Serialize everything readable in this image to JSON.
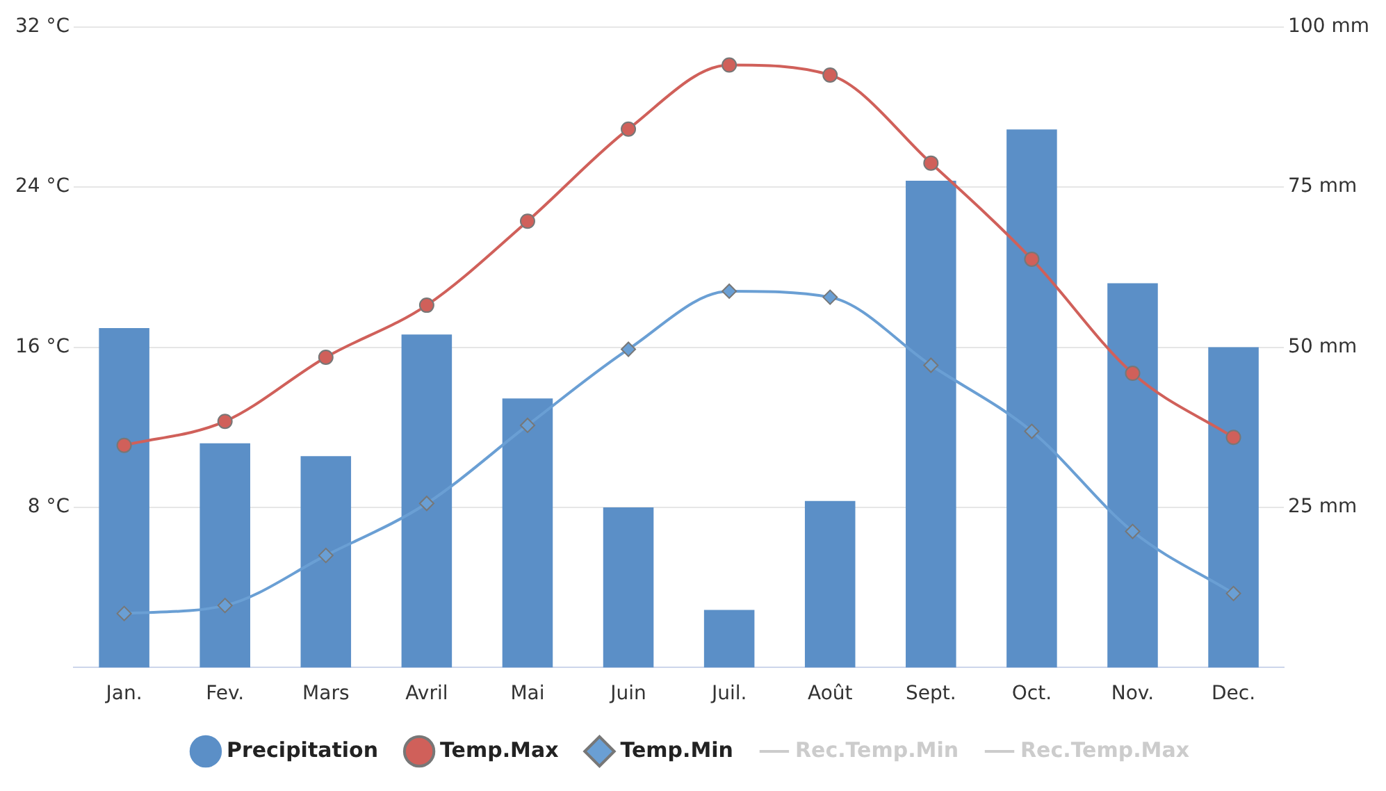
{
  "chart_data": {
    "type": "bar",
    "categories": [
      "Jan.",
      "Fev.",
      "Mars",
      "Avril",
      "Mai",
      "Juin",
      "Juil.",
      "Août",
      "Sept.",
      "Oct.",
      "Nov.",
      "Dec."
    ],
    "series": [
      {
        "name": "Precipitation",
        "axis": "y2",
        "color": "#5b8fc7",
        "values": [
          53,
          35,
          33,
          52,
          42,
          25,
          9,
          26,
          76,
          84,
          60,
          50
        ]
      },
      {
        "name": "Temp.Max",
        "type": "line",
        "axis": "y",
        "color": "#d0605a",
        "marker": "circle",
        "values": [
          11.1,
          12.3,
          15.5,
          18.1,
          22.3,
          26.9,
          30.1,
          29.6,
          25.2,
          20.4,
          14.7,
          11.5
        ]
      },
      {
        "name": "Temp.Min",
        "type": "line",
        "axis": "y",
        "color": "#6a9fd4",
        "marker": "diamond",
        "values": [
          2.7,
          3.1,
          5.6,
          8.2,
          12.1,
          15.9,
          18.8,
          18.5,
          15.1,
          11.8,
          6.8,
          3.7
        ]
      },
      {
        "name": "Rec.Temp.Min",
        "type": "line",
        "axis": "y",
        "color": "#cccccc",
        "values": [
          null,
          null,
          null,
          null,
          null,
          null,
          null,
          null,
          null,
          null,
          null,
          null
        ]
      },
      {
        "name": "Rec.Temp.Max",
        "type": "line",
        "axis": "y",
        "color": "#cccccc",
        "values": [
          null,
          null,
          null,
          null,
          null,
          null,
          null,
          null,
          null,
          null,
          null,
          null
        ]
      }
    ],
    "ylim": [
      0,
      32
    ],
    "yticks": [
      {
        "value": 0,
        "label": null
      },
      {
        "value": 8,
        "label": "8 °C"
      },
      {
        "value": 16,
        "label": "16 °C"
      },
      {
        "value": 24,
        "label": "24 °C"
      },
      {
        "value": 32,
        "label": "32 °C"
      }
    ],
    "y2lim": [
      0,
      100
    ],
    "y2ticks": [
      {
        "value": 0,
        "label": null
      },
      {
        "value": 25,
        "label": "25 mm"
      },
      {
        "value": 50,
        "label": "50 mm"
      },
      {
        "value": 75,
        "label": "75 mm"
      },
      {
        "value": 100,
        "label": "100 mm"
      }
    ],
    "grid": "y",
    "legend": "bottom"
  }
}
